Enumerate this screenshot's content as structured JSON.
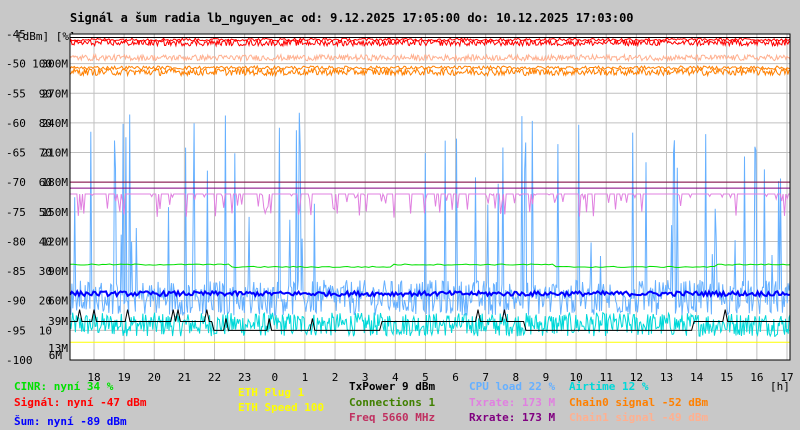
{
  "chart_data": {
    "type": "line",
    "title": "Signál a šum radia lb_nguyen_ac od: 9.12.2025 17:05:00 do: 10.12.2025 17:03:00",
    "y_axis_units": "[dBm] [%]",
    "x_axis_unit": "[h]",
    "dbm_ticks": [
      "-45",
      "-50",
      "-55",
      "-60",
      "-65",
      "-70",
      "-75",
      "-80",
      "-85",
      "-90",
      "-95",
      "-100"
    ],
    "pct_ticks": [
      "",
      "100",
      "90",
      "80",
      "70",
      "60",
      "50",
      "40",
      "30",
      "20",
      "10",
      ""
    ],
    "rate_ticks": [
      "",
      "300M",
      "270M",
      "240M",
      "210M",
      "180M",
      "150M",
      "120M",
      "90M",
      "60M",
      "",
      ""
    ],
    "rate_extra": {
      "r39": "39M",
      "r13": "13M",
      "r6": "6M"
    },
    "x_ticks": [
      "18",
      "19",
      "20",
      "21",
      "22",
      "23",
      "0",
      "1",
      "2",
      "3",
      "4",
      "5",
      "6",
      "7",
      "8",
      "9",
      "10",
      "11",
      "12",
      "13",
      "14",
      "15",
      "16",
      "17"
    ],
    "ylim_dbm": [
      -100,
      -45
    ],
    "ylim_pct": [
      0,
      110
    ],
    "grid": true,
    "series": [
      {
        "name": "CINR",
        "color": "#00e000",
        "level_pct": 34
      },
      {
        "name": "Signál",
        "color": "#ff0000",
        "level_dbm": -47
      },
      {
        "name": "Šum",
        "color": "#0000ff",
        "level_dbm": -89
      },
      {
        "name": "TxPower",
        "color": "#000000"
      },
      {
        "name": "CPU load",
        "color": "#66b0ff",
        "level_pct": 22
      },
      {
        "name": "Airtime",
        "color": "#00d8d8",
        "level_pct": 12
      },
      {
        "name": "Txrate",
        "color": "#e080e0",
        "level_mbps": 173
      },
      {
        "name": "Rxrate",
        "color": "#800080",
        "level_mbps": 173
      },
      {
        "name": "Chain0 signal",
        "color": "#ff8000",
        "level_dbm": -52
      },
      {
        "name": "Chain1 signal",
        "color": "#ffb090",
        "level_dbm": -49
      }
    ]
  },
  "legend": {
    "cinr": "CINR: nyní 34 %",
    "signal": "Signál: nyní -47 dBm",
    "noise": "Šum: nyní -89 dBm",
    "eth_plug": "ETH Plug 1",
    "eth_speed": "ETH Speed 100",
    "txpower": "TxPower 9 dBm",
    "connections": "Connections 1",
    "freq": "Freq 5660 MHz",
    "cpu": "CPU load 22 %",
    "txrate": "Txrate: 173 M",
    "rxrate": "Rxrate: 173 M",
    "airtime": "Airtime 12 %",
    "chain0": "Chain0 signal -52 dBm",
    "chain1": "Chain1 signal -49 dBm"
  },
  "colors": {
    "background": "#c8c8c8",
    "plot": "#ffffff",
    "grid": "#c0c0c0",
    "cinr": "#00e000",
    "signal": "#ff0000",
    "noise": "#0000ff",
    "eth": "#ffff00",
    "txpower": "#000000",
    "connections": "#408000",
    "freq": "#c03060",
    "cpu": "#66b0ff",
    "txrate": "#e080e0",
    "rxrate": "#800080",
    "airtime": "#00d8d8",
    "chain0": "#ff8000",
    "chain1": "#ffb090",
    "limits": "#800040"
  }
}
